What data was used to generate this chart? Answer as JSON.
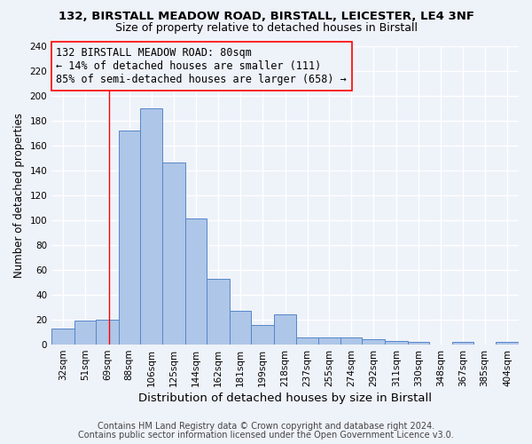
{
  "title1": "132, BIRSTALL MEADOW ROAD, BIRSTALL, LEICESTER, LE4 3NF",
  "title2": "Size of property relative to detached houses in Birstall",
  "xlabel": "Distribution of detached houses by size in Birstall",
  "ylabel": "Number of detached properties",
  "categories": [
    "32sqm",
    "51sqm",
    "69sqm",
    "88sqm",
    "106sqm",
    "125sqm",
    "144sqm",
    "162sqm",
    "181sqm",
    "199sqm",
    "218sqm",
    "237sqm",
    "255sqm",
    "274sqm",
    "292sqm",
    "311sqm",
    "330sqm",
    "348sqm",
    "367sqm",
    "385sqm",
    "404sqm"
  ],
  "values": [
    13,
    19,
    20,
    172,
    190,
    146,
    101,
    53,
    27,
    16,
    24,
    6,
    6,
    6,
    4,
    3,
    2,
    0,
    2,
    0,
    2
  ],
  "bar_color": "#aec6e8",
  "bar_edge_color": "#5586c8",
  "redline_x": 80,
  "annotation_line1": "132 BIRSTALL MEADOW ROAD: 80sqm",
  "annotation_line2": "← 14% of detached houses are smaller (111)",
  "annotation_line3": "85% of semi-detached houses are larger (658) →",
  "bin_edges": [
    32,
    51,
    69,
    88,
    106,
    125,
    144,
    162,
    181,
    199,
    218,
    237,
    255,
    274,
    292,
    311,
    330,
    348,
    367,
    385,
    404,
    423
  ],
  "ylim": [
    0,
    240
  ],
  "yticks": [
    0,
    20,
    40,
    60,
    80,
    100,
    120,
    140,
    160,
    180,
    200,
    220,
    240
  ],
  "footer1": "Contains HM Land Registry data © Crown copyright and database right 2024.",
  "footer2": "Contains public sector information licensed under the Open Government Licence v3.0.",
  "background_color": "#eef2f9",
  "grid_color": "#ffffff",
  "title1_fontsize": 9.5,
  "title2_fontsize": 9,
  "xlabel_fontsize": 9.5,
  "ylabel_fontsize": 8.5,
  "footer_fontsize": 7,
  "tick_fontsize": 7.5,
  "annotation_fontsize": 8.5
}
